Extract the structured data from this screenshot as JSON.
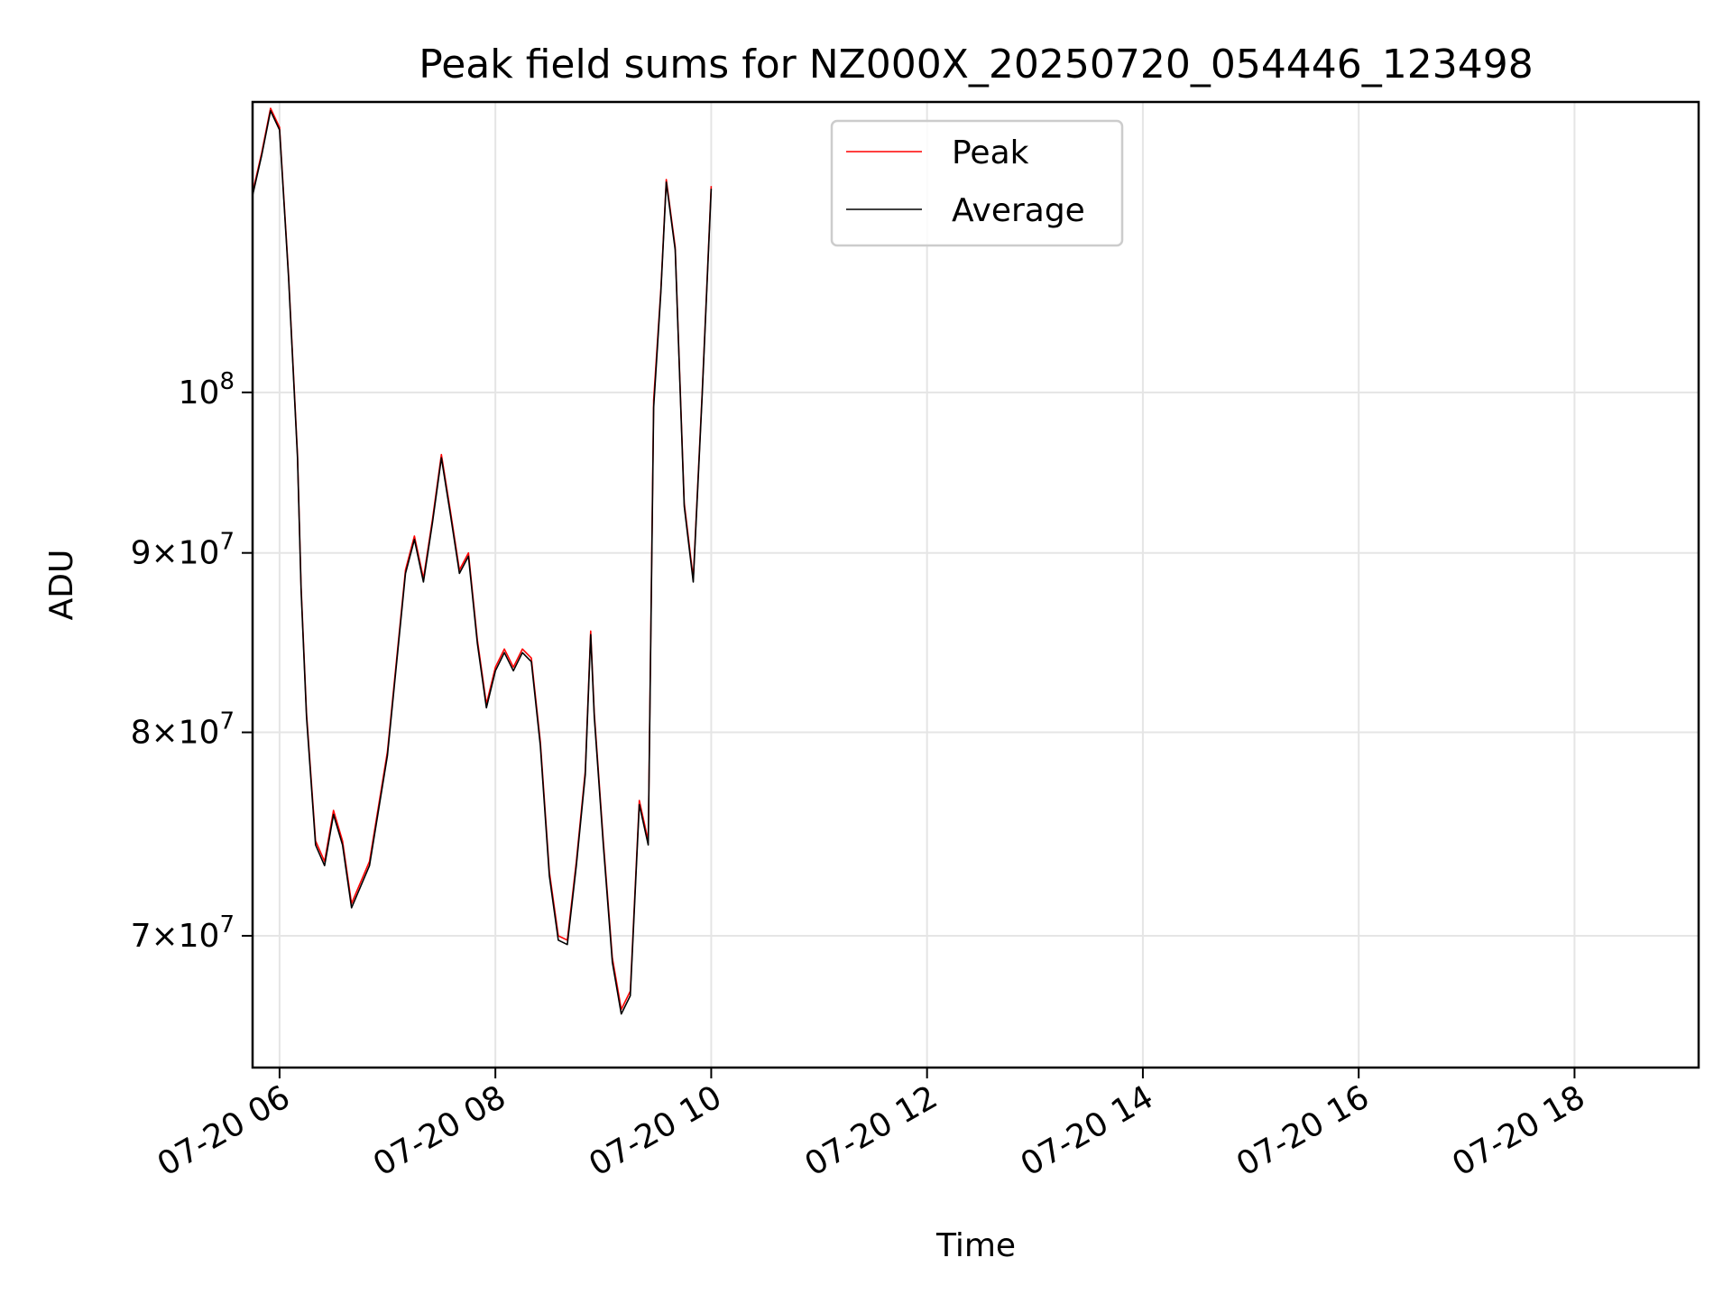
{
  "chart_data": {
    "type": "line",
    "title": "Peak field sums for NZ000X_20250720_054446_123498",
    "xlabel": "Time",
    "ylabel": "ADU",
    "yscale": "log",
    "ylim": [
      64200000,
      121000000
    ],
    "xlim": [
      "2025-07-20 05:45",
      "2025-07-20 19:09"
    ],
    "grid": true,
    "legend_position": "top-center",
    "x_ticks": [
      {
        "value": "2025-07-20 06:00",
        "label": "07-20 06"
      },
      {
        "value": "2025-07-20 08:00",
        "label": "07-20 08"
      },
      {
        "value": "2025-07-20 10:00",
        "label": "07-20 10"
      },
      {
        "value": "2025-07-20 12:00",
        "label": "07-20 12"
      },
      {
        "value": "2025-07-20 14:00",
        "label": "07-20 14"
      },
      {
        "value": "2025-07-20 16:00",
        "label": "07-20 16"
      },
      {
        "value": "2025-07-20 18:00",
        "label": "07-20 18"
      }
    ],
    "y_ticks": [
      {
        "value": 70000000,
        "base": "7",
        "exp": "7"
      },
      {
        "value": 80000000,
        "base": "8",
        "exp": "7"
      },
      {
        "value": 90000000,
        "base": "9",
        "exp": "7"
      },
      {
        "value": 100000000,
        "base": "",
        "exp": "8"
      }
    ],
    "series": [
      {
        "name": "Peak",
        "color": "#ff0000",
        "points": [
          [
            "2025-07-20 05:45",
            114000000
          ],
          [
            "2025-07-20 05:50",
            117000000
          ],
          [
            "2025-07-20 05:55",
            120500000
          ],
          [
            "2025-07-20 06:00",
            119000000
          ],
          [
            "2025-07-20 06:05",
            108000000
          ],
          [
            "2025-07-20 06:10",
            96000000
          ],
          [
            "2025-07-20 06:12",
            88000000
          ],
          [
            "2025-07-20 06:15",
            81000000
          ],
          [
            "2025-07-20 06:20",
            74500000
          ],
          [
            "2025-07-20 06:25",
            73500000
          ],
          [
            "2025-07-20 06:30",
            76000000
          ],
          [
            "2025-07-20 06:35",
            74500000
          ],
          [
            "2025-07-20 06:40",
            71500000
          ],
          [
            "2025-07-20 06:50",
            73500000
          ],
          [
            "2025-07-20 07:00",
            79000000
          ],
          [
            "2025-07-20 07:10",
            89000000
          ],
          [
            "2025-07-20 07:15",
            91000000
          ],
          [
            "2025-07-20 07:20",
            88500000
          ],
          [
            "2025-07-20 07:25",
            92000000
          ],
          [
            "2025-07-20 07:30",
            96000000
          ],
          [
            "2025-07-20 07:35",
            92500000
          ],
          [
            "2025-07-20 07:40",
            89000000
          ],
          [
            "2025-07-20 07:45",
            90000000
          ],
          [
            "2025-07-20 07:50",
            85000000
          ],
          [
            "2025-07-20 07:55",
            81500000
          ],
          [
            "2025-07-20 08:00",
            83500000
          ],
          [
            "2025-07-20 08:05",
            84500000
          ],
          [
            "2025-07-20 08:10",
            83500000
          ],
          [
            "2025-07-20 08:15",
            84500000
          ],
          [
            "2025-07-20 08:20",
            84000000
          ],
          [
            "2025-07-20 08:25",
            79500000
          ],
          [
            "2025-07-20 08:30",
            73000000
          ],
          [
            "2025-07-20 08:35",
            70000000
          ],
          [
            "2025-07-20 08:40",
            69800000
          ],
          [
            "2025-07-20 08:45",
            73500000
          ],
          [
            "2025-07-20 08:50",
            78000000
          ],
          [
            "2025-07-20 08:53",
            85500000
          ],
          [
            "2025-07-20 08:55",
            81000000
          ],
          [
            "2025-07-20 09:00",
            74500000
          ],
          [
            "2025-07-20 09:05",
            69000000
          ],
          [
            "2025-07-20 09:10",
            66700000
          ],
          [
            "2025-07-20 09:15",
            67500000
          ],
          [
            "2025-07-20 09:20",
            76500000
          ],
          [
            "2025-07-20 09:25",
            74500000
          ],
          [
            "2025-07-20 09:28",
            99500000
          ],
          [
            "2025-07-20 09:32",
            107000000
          ],
          [
            "2025-07-20 09:35",
            115000000
          ],
          [
            "2025-07-20 09:40",
            110000000
          ],
          [
            "2025-07-20 09:45",
            93000000
          ],
          [
            "2025-07-20 09:50",
            88500000
          ],
          [
            "2025-07-20 09:55",
            100000000
          ],
          [
            "2025-07-20 10:00",
            114500000
          ]
        ]
      },
      {
        "name": "Average",
        "color": "#000000",
        "points": [
          [
            "2025-07-20 05:45",
            113800000
          ],
          [
            "2025-07-20 05:50",
            116800000
          ],
          [
            "2025-07-20 05:55",
            120300000
          ],
          [
            "2025-07-20 06:00",
            118800000
          ],
          [
            "2025-07-20 06:05",
            107800000
          ],
          [
            "2025-07-20 06:10",
            95800000
          ],
          [
            "2025-07-20 06:12",
            87800000
          ],
          [
            "2025-07-20 06:15",
            80800000
          ],
          [
            "2025-07-20 06:20",
            74300000
          ],
          [
            "2025-07-20 06:25",
            73300000
          ],
          [
            "2025-07-20 06:30",
            75800000
          ],
          [
            "2025-07-20 06:35",
            74300000
          ],
          [
            "2025-07-20 06:40",
            71300000
          ],
          [
            "2025-07-20 06:50",
            73300000
          ],
          [
            "2025-07-20 07:00",
            78800000
          ],
          [
            "2025-07-20 07:10",
            88800000
          ],
          [
            "2025-07-20 07:15",
            90800000
          ],
          [
            "2025-07-20 07:20",
            88300000
          ],
          [
            "2025-07-20 07:25",
            91800000
          ],
          [
            "2025-07-20 07:30",
            95800000
          ],
          [
            "2025-07-20 07:35",
            92300000
          ],
          [
            "2025-07-20 07:40",
            88800000
          ],
          [
            "2025-07-20 07:45",
            89800000
          ],
          [
            "2025-07-20 07:50",
            84800000
          ],
          [
            "2025-07-20 07:55",
            81300000
          ],
          [
            "2025-07-20 08:00",
            83300000
          ],
          [
            "2025-07-20 08:05",
            84300000
          ],
          [
            "2025-07-20 08:10",
            83300000
          ],
          [
            "2025-07-20 08:15",
            84300000
          ],
          [
            "2025-07-20 08:20",
            83800000
          ],
          [
            "2025-07-20 08:25",
            79300000
          ],
          [
            "2025-07-20 08:30",
            72800000
          ],
          [
            "2025-07-20 08:35",
            69800000
          ],
          [
            "2025-07-20 08:40",
            69600000
          ],
          [
            "2025-07-20 08:45",
            73300000
          ],
          [
            "2025-07-20 08:50",
            77800000
          ],
          [
            "2025-07-20 08:53",
            85300000
          ],
          [
            "2025-07-20 08:55",
            80800000
          ],
          [
            "2025-07-20 09:00",
            74300000
          ],
          [
            "2025-07-20 09:05",
            68800000
          ],
          [
            "2025-07-20 09:10",
            66500000
          ],
          [
            "2025-07-20 09:15",
            67300000
          ],
          [
            "2025-07-20 09:20",
            76300000
          ],
          [
            "2025-07-20 09:25",
            74300000
          ],
          [
            "2025-07-20 09:28",
            99000000
          ],
          [
            "2025-07-20 09:32",
            106800000
          ],
          [
            "2025-07-20 09:35",
            114800000
          ],
          [
            "2025-07-20 09:40",
            109800000
          ],
          [
            "2025-07-20 09:45",
            92800000
          ],
          [
            "2025-07-20 09:50",
            88300000
          ],
          [
            "2025-07-20 09:55",
            99800000
          ],
          [
            "2025-07-20 10:00",
            114300000
          ]
        ]
      }
    ]
  }
}
